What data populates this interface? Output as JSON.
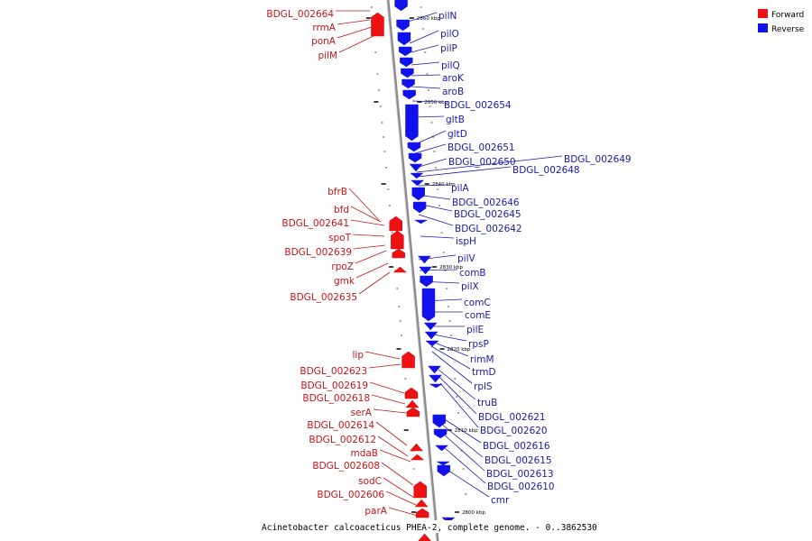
{
  "caption": "Acinetobacter calcoaceticus PHEA-2, complete genome. - 0..3862530",
  "legend": {
    "position": "top-right",
    "items": [
      {
        "label": "Forward",
        "color": "#ee1111"
      },
      {
        "label": "Reverse",
        "color": "#1111ee"
      }
    ]
  },
  "colors": {
    "forward": "#ee1111",
    "reverse": "#1111ee",
    "backbone": "#8c8c8c"
  },
  "scale_labels": [
    "2860 kbp",
    "2850 kbp",
    "2840 kbp",
    "2830 kbp",
    "2820 kbp",
    "2810 kbp",
    "2800 kbp"
  ],
  "reverse_genes": [
    "pilN",
    "pilO",
    "pilP",
    "pilQ",
    "aroK",
    "aroB",
    "BDGL_002654",
    "gltB",
    "gltD",
    "BDGL_002651",
    "BDGL_002650",
    "BDGL_002649",
    "BDGL_002648",
    "pilA",
    "BDGL_002646",
    "BDGL_002645",
    "BDGL_002642",
    "ispH",
    "pilV",
    "comB",
    "pilX",
    "comC",
    "comE",
    "pilE",
    "rpsP",
    "rimM",
    "trmD",
    "rplS",
    "truB",
    "BDGL_002621",
    "BDGL_002620",
    "BDGL_002616",
    "BDGL_002615",
    "BDGL_002613",
    "BDGL_002610",
    "cmr"
  ],
  "forward_genes": [
    "BDGL_002664",
    "rrmA",
    "ponA",
    "pilM",
    "bfrB",
    "bfd",
    "BDGL_002641",
    "spoT",
    "BDGL_002639",
    "rpoZ",
    "gmk",
    "BDGL_002635",
    "lip",
    "BDGL_002623",
    "BDGL_002619",
    "BDGL_002618",
    "serA",
    "BDGL_002614",
    "BDGL_002612",
    "mdaB",
    "BDGL_002608",
    "sodC",
    "BDGL_002606",
    "parA"
  ]
}
